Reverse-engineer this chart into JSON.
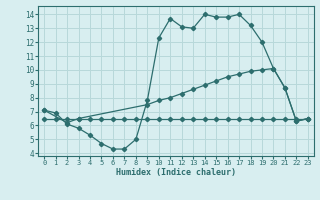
{
  "line1_x": [
    0,
    1,
    2,
    3,
    4,
    5,
    6,
    7,
    8,
    9,
    10,
    11,
    12,
    13,
    14,
    15,
    16,
    17,
    18,
    19,
    20,
    21,
    22,
    23
  ],
  "line1_y": [
    7.1,
    6.9,
    6.1,
    5.8,
    5.3,
    4.7,
    4.3,
    4.3,
    5.0,
    7.8,
    12.3,
    13.7,
    13.1,
    13.0,
    14.0,
    13.8,
    13.8,
    14.0,
    13.2,
    12.0,
    10.1,
    8.7,
    6.3,
    6.5
  ],
  "line2_x": [
    0,
    1,
    2,
    3,
    4,
    5,
    6,
    7,
    8,
    9,
    10,
    11,
    12,
    13,
    14,
    15,
    16,
    17,
    18,
    19,
    20,
    21,
    22,
    23
  ],
  "line2_y": [
    6.5,
    6.5,
    6.5,
    6.5,
    6.5,
    6.5,
    6.5,
    6.5,
    6.5,
    6.5,
    6.5,
    6.5,
    6.5,
    6.5,
    6.5,
    6.5,
    6.5,
    6.5,
    6.5,
    6.5,
    6.5,
    6.5,
    6.5,
    6.5
  ],
  "line3_x": [
    0,
    2,
    3,
    9,
    10,
    11,
    12,
    13,
    14,
    15,
    16,
    17,
    18,
    19,
    20,
    21,
    22,
    23
  ],
  "line3_y": [
    7.1,
    6.2,
    6.5,
    7.5,
    7.8,
    8.0,
    8.3,
    8.6,
    8.9,
    9.2,
    9.5,
    9.7,
    9.9,
    10.0,
    10.1,
    8.7,
    6.3,
    6.5
  ],
  "color": "#2d6e6e",
  "bg_color": "#d8eef0",
  "grid_color": "#b8d8da",
  "xlabel": "Humidex (Indice chaleur)",
  "xlim": [
    -0.5,
    23.5
  ],
  "ylim": [
    3.8,
    14.6
  ],
  "yticks": [
    4,
    5,
    6,
    7,
    8,
    9,
    10,
    11,
    12,
    13,
    14
  ],
  "xticks": [
    0,
    1,
    2,
    3,
    4,
    5,
    6,
    7,
    8,
    9,
    10,
    11,
    12,
    13,
    14,
    15,
    16,
    17,
    18,
    19,
    20,
    21,
    22,
    23
  ]
}
